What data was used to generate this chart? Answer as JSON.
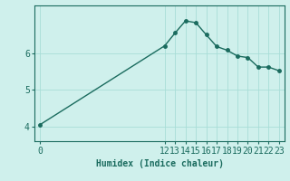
{
  "xlabel": "Humidex (Indice chaleur)",
  "ylabel": "",
  "background_color": "#cff0ec",
  "line_color": "#1a6b5e",
  "marker_color": "#1a6b5e",
  "x": [
    0,
    12,
    13,
    14,
    15,
    16,
    17,
    18,
    19,
    20,
    21,
    22,
    23
  ],
  "y": [
    4.05,
    6.2,
    6.55,
    6.88,
    6.83,
    6.5,
    6.18,
    6.08,
    5.92,
    5.88,
    5.62,
    5.62,
    5.52
  ],
  "xlim": [
    -0.5,
    23.5
  ],
  "ylim": [
    3.6,
    7.3
  ],
  "yticks": [
    4,
    5,
    6
  ],
  "xtick_positions": [
    0,
    12,
    13,
    14,
    15,
    16,
    17,
    18,
    19,
    20,
    21,
    22,
    23
  ],
  "xtick_labels": [
    "0",
    "12",
    "13",
    "14",
    "15",
    "16",
    "17",
    "18",
    "19",
    "20",
    "21",
    "22",
    "23"
  ],
  "grid_color": "#a8ddd7",
  "grid_linewidth": 0.6,
  "line_linewidth": 1.0,
  "marker_size": 2.5,
  "xlabel_fontsize": 7,
  "tick_fontsize": 7,
  "tick_color": "#1a6b5e"
}
